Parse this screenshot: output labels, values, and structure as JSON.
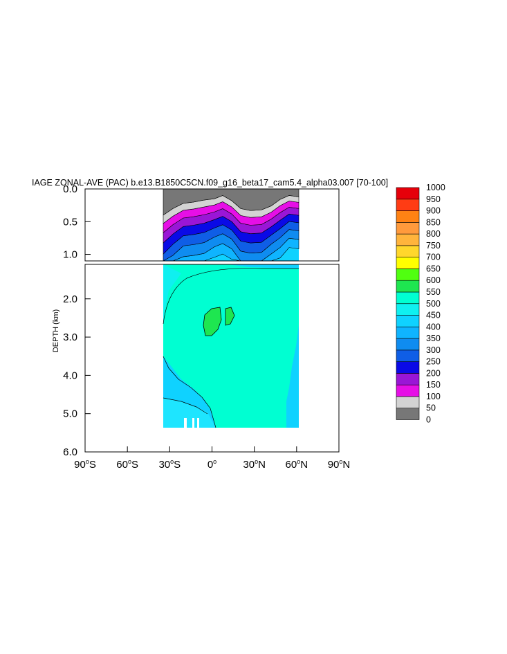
{
  "chart_data": {
    "type": "heatmap",
    "title": "IAGE ZONAL-AVE (PAC) b.e13.B1850C5CN.f09_g16_beta17_cam5.4_alpha03.007 [70-100]",
    "xlabel": "",
    "ylabel": "DEPTH (km)",
    "xlim": [
      -90,
      90
    ],
    "ylim": [
      6.0,
      0.0
    ],
    "upper_panel_ylim": [
      0.0,
      1.1
    ],
    "lower_panel_ylim": [
      1.1,
      6.0
    ],
    "x_ticks": [
      {
        "value": -90,
        "deg": "90",
        "hemi": "S"
      },
      {
        "value": -60,
        "deg": "60",
        "hemi": "S"
      },
      {
        "value": -30,
        "deg": "30",
        "hemi": "S"
      },
      {
        "value": 0,
        "deg": "0",
        "hemi": ""
      },
      {
        "value": 30,
        "deg": "30",
        "hemi": "N"
      },
      {
        "value": 60,
        "deg": "60",
        "hemi": "N"
      },
      {
        "value": 90,
        "deg": "90",
        "hemi": "N"
      }
    ],
    "y_ticks_upper": [
      {
        "value": 0.0,
        "label": "0.0"
      },
      {
        "value": 0.5,
        "label": "0.5"
      },
      {
        "value": 1.0,
        "label": "1.0"
      }
    ],
    "y_ticks_lower": [
      {
        "value": 2.0,
        "label": "2.0"
      },
      {
        "value": 3.0,
        "label": "3.0"
      },
      {
        "value": 4.0,
        "label": "4.0"
      },
      {
        "value": 5.0,
        "label": "5.0"
      },
      {
        "value": 6.0,
        "label": "6.0"
      }
    ],
    "colorbar": {
      "levels": [
        "0",
        "50",
        "100",
        "150",
        "200",
        "250",
        "300",
        "350",
        "400",
        "450",
        "500",
        "550",
        "600",
        "650",
        "700",
        "750",
        "800",
        "850",
        "900",
        "950",
        "1000"
      ],
      "colors": [
        "#777777",
        "#d3d3d3",
        "#e60fe6",
        "#9a16d6",
        "#0a0ae6",
        "#0f5ee6",
        "#0f8cf0",
        "#0fb4ff",
        "#0fd2ff",
        "#0ff0f0",
        "#00ffd2",
        "#1ee650",
        "#50ff10",
        "#ffff00",
        "#ffd72c",
        "#ffb43c",
        "#ff9a3c",
        "#ff8214",
        "#ff3c14",
        "#e6000a"
      ]
    },
    "data_extent_lat": [
      -33,
      62
    ],
    "field_description_levels": [
      0,
      50,
      100,
      150,
      200,
      250,
      300,
      350,
      400,
      450,
      500,
      550
    ],
    "grid": false,
    "legend_placement": "right"
  }
}
